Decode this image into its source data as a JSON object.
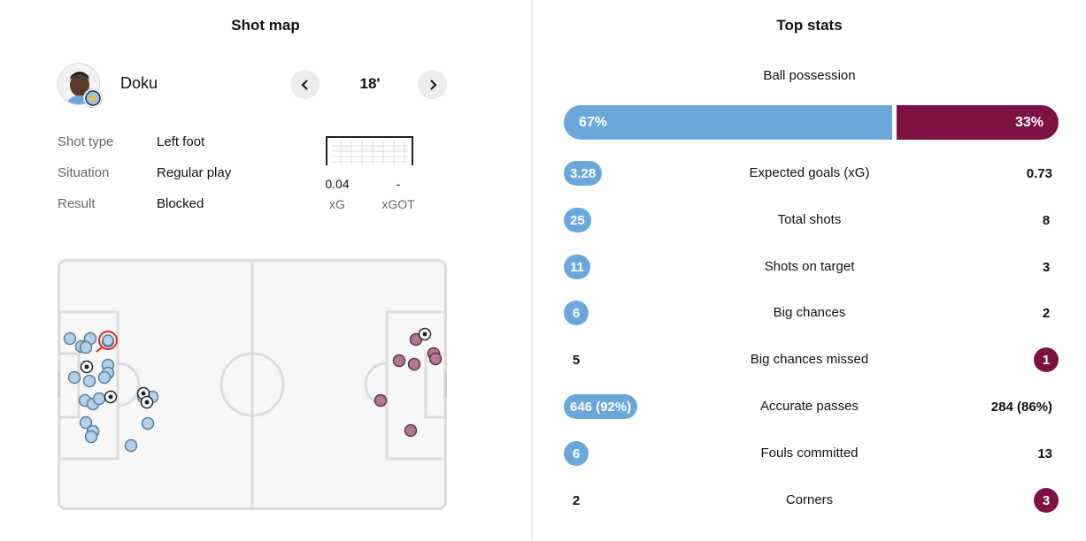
{
  "shot_map": {
    "title": "Shot map",
    "player": {
      "name": "Doku"
    },
    "minute": "18'",
    "details": [
      {
        "label": "Shot type",
        "value": "Left foot"
      },
      {
        "label": "Situation",
        "value": "Regular play"
      },
      {
        "label": "Result",
        "value": "Blocked"
      }
    ],
    "xg": {
      "value": "0.04",
      "label": "xG"
    },
    "xgot": {
      "value": "-",
      "label": "xGOT"
    }
  },
  "top_stats": {
    "title": "Top stats",
    "possession": {
      "label": "Ball possession",
      "home": "67%",
      "away": "33%",
      "home_fraction": 0.67
    },
    "rows": [
      {
        "label": "Expected goals (xG)",
        "home": "3.28",
        "away": "0.73",
        "highlight": "home"
      },
      {
        "label": "Total shots",
        "home": "25",
        "away": "8",
        "highlight": "home"
      },
      {
        "label": "Shots on target",
        "home": "11",
        "away": "3",
        "highlight": "home"
      },
      {
        "label": "Big chances",
        "home": "6",
        "away": "2",
        "highlight": "home"
      },
      {
        "label": "Big chances missed",
        "home": "5",
        "away": "1",
        "highlight": "away"
      },
      {
        "label": "Accurate passes",
        "home": "646 (92%)",
        "away": "284 (86%)",
        "highlight": "home"
      },
      {
        "label": "Fouls committed",
        "home": "6",
        "away": "13",
        "highlight": "home"
      },
      {
        "label": "Corners",
        "home": "2",
        "away": "3",
        "highlight": "away"
      }
    ]
  },
  "colors": {
    "home": "#6aa8dc",
    "away": "#7e1144",
    "home_shot": "#b4d0e8",
    "away_shot": "#b07890",
    "selected": "#e0262b"
  }
}
